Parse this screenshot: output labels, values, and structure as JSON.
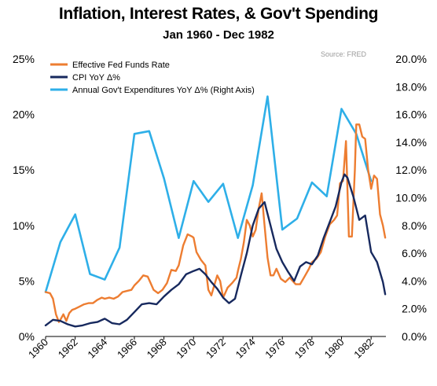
{
  "chart_data": {
    "type": "line",
    "title": "Inflation, Interest Rates, & Gov't Spending",
    "subtitle": "Jan 1960 - Dec 1982",
    "source": "Source:  FRED",
    "ylim_left": [
      0,
      25
    ],
    "ylim_right": [
      0,
      20
    ],
    "xlim": [
      1960,
      1983
    ],
    "left_ticks": [
      "0%",
      "5%",
      "10%",
      "15%",
      "20%",
      "25%"
    ],
    "right_ticks": [
      "0.0%",
      "2.0%",
      "4.0%",
      "6.0%",
      "8.0%",
      "10.0%",
      "12.0%",
      "14.0%",
      "16.0%",
      "18.0%",
      "20.0%"
    ],
    "x_ticks": [
      "1960",
      "1962",
      "1964",
      "1966",
      "1968",
      "1970",
      "1972",
      "1974",
      "1976",
      "1978",
      "1980",
      "1982"
    ],
    "legend_position": "top-left",
    "grid": false,
    "series": [
      {
        "name": "Effective Fed Funds Rate",
        "color": "#ED7D31",
        "axis": "left",
        "x": [
          1960.0,
          1960.3,
          1960.5,
          1960.7,
          1960.9,
          1961.0,
          1961.2,
          1961.4,
          1961.6,
          1961.8,
          1962.0,
          1962.3,
          1962.6,
          1962.9,
          1963.2,
          1963.5,
          1963.8,
          1964.0,
          1964.3,
          1964.6,
          1964.9,
          1965.2,
          1965.5,
          1965.8,
          1966.0,
          1966.3,
          1966.6,
          1966.9,
          1967.1,
          1967.3,
          1967.6,
          1967.9,
          1968.2,
          1968.5,
          1968.8,
          1969.0,
          1969.3,
          1969.6,
          1969.9,
          1970.0,
          1970.2,
          1970.5,
          1970.8,
          1971.0,
          1971.2,
          1971.4,
          1971.6,
          1971.8,
          1972.0,
          1972.3,
          1972.6,
          1972.9,
          1973.0,
          1973.2,
          1973.4,
          1973.6,
          1973.8,
          1974.0,
          1974.2,
          1974.4,
          1974.6,
          1974.8,
          1975.0,
          1975.2,
          1975.4,
          1975.6,
          1975.9,
          1976.2,
          1976.5,
          1976.9,
          1977.2,
          1977.5,
          1977.8,
          1978.0,
          1978.3,
          1978.6,
          1978.9,
          1979.2,
          1979.5,
          1979.7,
          1979.9,
          1980.1,
          1980.3,
          1980.5,
          1980.7,
          1980.9,
          1981.0,
          1981.2,
          1981.4,
          1981.6,
          1981.8,
          1982.0,
          1982.2,
          1982.4,
          1982.6,
          1982.8,
          1982.95
        ],
        "y": [
          4.0,
          3.9,
          3.4,
          2.0,
          1.3,
          1.5,
          2.0,
          1.4,
          2.1,
          2.4,
          2.5,
          2.7,
          2.9,
          3.0,
          3.0,
          3.3,
          3.5,
          3.4,
          3.5,
          3.4,
          3.6,
          4.0,
          4.1,
          4.2,
          4.6,
          5.0,
          5.5,
          5.4,
          4.8,
          4.2,
          3.9,
          4.2,
          4.8,
          6.0,
          5.9,
          6.4,
          8.2,
          9.2,
          9.0,
          8.9,
          7.6,
          6.9,
          6.4,
          4.2,
          3.7,
          4.6,
          5.5,
          5.0,
          3.5,
          4.4,
          4.8,
          5.3,
          5.9,
          7.0,
          8.5,
          10.5,
          10.0,
          9.0,
          9.6,
          11.5,
          12.9,
          10.0,
          7.1,
          5.5,
          5.5,
          6.1,
          5.2,
          4.9,
          5.3,
          4.7,
          4.7,
          5.4,
          6.1,
          6.7,
          7.0,
          7.6,
          9.0,
          10.1,
          10.5,
          10.9,
          13.8,
          14.0,
          17.6,
          9.0,
          9.0,
          15.0,
          19.1,
          19.1,
          18.0,
          17.8,
          15.0,
          13.3,
          14.5,
          14.2,
          11.0,
          10.0,
          8.9
        ]
      },
      {
        "name": "CPI YoY Δ%",
        "color": "#17295E",
        "axis": "left",
        "x": [
          1960.0,
          1960.5,
          1961.0,
          1961.5,
          1962.0,
          1962.5,
          1963.0,
          1963.5,
          1964.0,
          1964.5,
          1965.0,
          1965.5,
          1966.0,
          1966.5,
          1967.0,
          1967.5,
          1968.0,
          1968.5,
          1969.0,
          1969.5,
          1970.0,
          1970.4,
          1970.8,
          1971.2,
          1971.6,
          1972.0,
          1972.4,
          1972.8,
          1973.2,
          1973.6,
          1974.0,
          1974.4,
          1974.8,
          1975.2,
          1975.6,
          1976.0,
          1976.4,
          1976.8,
          1977.2,
          1977.6,
          1978.0,
          1978.4,
          1978.8,
          1979.2,
          1979.6,
          1980.0,
          1980.2,
          1980.4,
          1980.8,
          1981.2,
          1981.6,
          1982.0,
          1982.4,
          1982.8,
          1982.95
        ],
        "y": [
          1.0,
          1.5,
          1.4,
          1.1,
          0.9,
          1.0,
          1.2,
          1.3,
          1.6,
          1.2,
          1.1,
          1.5,
          2.2,
          2.9,
          3.0,
          2.9,
          3.6,
          4.2,
          4.7,
          5.6,
          5.9,
          6.1,
          5.6,
          4.9,
          4.3,
          3.5,
          3.0,
          3.4,
          5.5,
          7.5,
          10.0,
          11.5,
          12.1,
          10.0,
          7.9,
          6.7,
          5.8,
          5.0,
          6.3,
          6.7,
          6.5,
          7.3,
          8.9,
          10.3,
          11.7,
          13.9,
          14.6,
          14.3,
          12.6,
          10.5,
          10.9,
          7.6,
          6.7,
          4.9,
          3.8
        ]
      },
      {
        "name": "Annual Gov't Expenditures YoY Δ% (Right Axis)",
        "color": "#2EAFE8",
        "axis": "right",
        "x": [
          1960.0,
          1961.0,
          1962.0,
          1963.0,
          1964.0,
          1965.0,
          1966.0,
          1967.0,
          1968.0,
          1969.0,
          1970.0,
          1971.0,
          1972.0,
          1973.0,
          1974.0,
          1975.0,
          1976.0,
          1977.0,
          1978.0,
          1979.0,
          1980.0,
          1981.0,
          1982.0
        ],
        "y": [
          3.2,
          6.8,
          8.8,
          4.5,
          4.1,
          6.4,
          14.6,
          14.8,
          11.4,
          7.1,
          11.2,
          9.7,
          11.0,
          7.1,
          10.9,
          17.3,
          7.7,
          8.5,
          11.1,
          10.1,
          16.4,
          14.6,
          11.2
        ]
      }
    ]
  }
}
